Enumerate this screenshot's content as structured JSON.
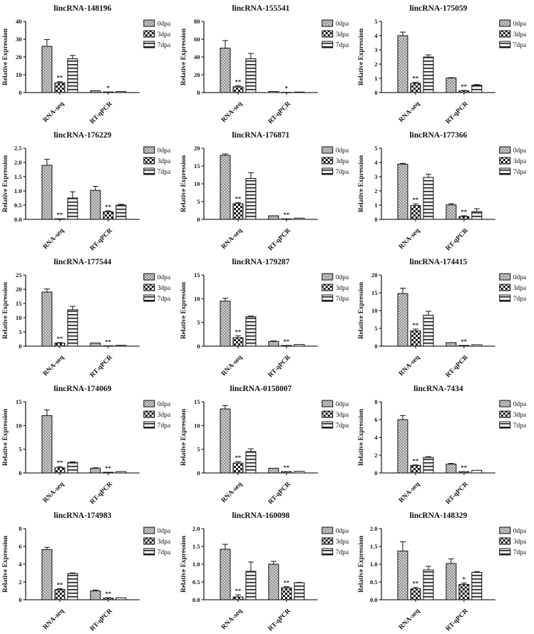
{
  "page": {
    "background": "#ffffff",
    "foreground": "#111111"
  },
  "legend": {
    "items": [
      "0dpa",
      "3dpa",
      "7dpa"
    ]
  },
  "axis": {
    "ylabel": "Relative Expression",
    "categories": [
      "RNA-seq",
      "RT-qPCR"
    ]
  },
  "chart_data": [
    {
      "type": "bar",
      "title": "lincRNA-148196",
      "title_font": "serif",
      "ylabel": "Relative Expression",
      "categories": [
        "RNA-seq",
        "RT-qPCR"
      ],
      "ylim": [
        0,
        40
      ],
      "ystep": 10,
      "ydecimals": 0,
      "series": [
        {
          "name": "0dpa",
          "values": [
            26,
            1.0
          ],
          "errors": [
            3.8,
            0
          ]
        },
        {
          "name": "3dpa",
          "values": [
            5.5,
            0.35
          ],
          "errors": [
            0.6,
            0
          ],
          "sig": [
            "**",
            "*"
          ]
        },
        {
          "name": "7dpa",
          "values": [
            19,
            0.55
          ],
          "errors": [
            1.9,
            0
          ]
        }
      ]
    },
    {
      "type": "bar",
      "title": "lincRNA-155541",
      "title_font": "sans",
      "ylabel": "Relative Expression",
      "categories": [
        "RNA-seq",
        "RT-qPCR"
      ],
      "ylim": [
        0,
        80
      ],
      "ystep": 20,
      "ydecimals": 0,
      "series": [
        {
          "name": "0dpa",
          "values": [
            50,
            1.2
          ],
          "errors": [
            8.5,
            0
          ]
        },
        {
          "name": "3dpa",
          "values": [
            6.5,
            0.3
          ],
          "errors": [
            1.2,
            0
          ],
          "sig": [
            "**",
            "*"
          ]
        },
        {
          "name": "7dpa",
          "values": [
            38,
            0.6
          ],
          "errors": [
            6,
            0
          ]
        }
      ]
    },
    {
      "type": "bar",
      "title": "lincRNA-175059",
      "title_font": "serif",
      "ylabel": "Relative Expression",
      "categories": [
        "RNA-seq",
        "RT-qPCR"
      ],
      "ylim": [
        0,
        5
      ],
      "ystep": 1,
      "ydecimals": 0,
      "series": [
        {
          "name": "0dpa",
          "values": [
            4.0,
            1.02
          ],
          "errors": [
            0.25,
            0.03
          ]
        },
        {
          "name": "3dpa",
          "values": [
            0.65,
            0.12
          ],
          "errors": [
            0.07,
            0.03
          ],
          "sig": [
            "**",
            "**"
          ]
        },
        {
          "name": "7dpa",
          "values": [
            2.5,
            0.52
          ],
          "errors": [
            0.15,
            0.04
          ]
        }
      ]
    },
    {
      "type": "bar",
      "title": "lincRNA-176229",
      "title_font": "serif",
      "ylabel": "Relative Expression",
      "categories": [
        "RNA-seq",
        "RT-qPCR"
      ],
      "ylim": [
        0,
        2.5
      ],
      "ystep": 0.5,
      "ydecimals": 1,
      "series": [
        {
          "name": "0dpa",
          "values": [
            1.9,
            1.02
          ],
          "errors": [
            0.21,
            0.14
          ]
        },
        {
          "name": "3dpa",
          "values": [
            0.02,
            0.27
          ],
          "errors": [
            0,
            0.03
          ],
          "sig": [
            "**",
            "**"
          ]
        },
        {
          "name": "7dpa",
          "values": [
            0.75,
            0.5
          ],
          "errors": [
            0.22,
            0.03
          ]
        }
      ]
    },
    {
      "type": "bar",
      "title": "lincRNA-176871",
      "title_font": "serif",
      "ylabel": "Relative Expression",
      "categories": [
        "RNA-seq",
        "RT-qPCR"
      ],
      "ylim": [
        0,
        20
      ],
      "ystep": 5,
      "ydecimals": 0,
      "series": [
        {
          "name": "0dpa",
          "values": [
            18,
            1.0
          ],
          "errors": [
            0.4,
            0
          ]
        },
        {
          "name": "3dpa",
          "values": [
            4.4,
            0.15
          ],
          "errors": [
            0.3,
            0
          ],
          "sig": [
            "**",
            "**"
          ]
        },
        {
          "name": "7dpa",
          "values": [
            11.5,
            0.35
          ],
          "errors": [
            1.6,
            0
          ]
        }
      ]
    },
    {
      "type": "bar",
      "title": "lincRNA-177366",
      "title_font": "serif",
      "ylabel": "Relative Expression",
      "categories": [
        "RNA-seq",
        "RT-qPCR"
      ],
      "ylim": [
        0,
        5
      ],
      "ystep": 1,
      "ydecimals": 0,
      "series": [
        {
          "name": "0dpa",
          "values": [
            3.88,
            1.02
          ],
          "errors": [
            0.06,
            0.08
          ]
        },
        {
          "name": "3dpa",
          "values": [
            0.97,
            0.2
          ],
          "errors": [
            0.12,
            0.05
          ],
          "sig": [
            "**",
            "**"
          ]
        },
        {
          "name": "7dpa",
          "values": [
            2.95,
            0.55
          ],
          "errors": [
            0.22,
            0.2
          ]
        }
      ]
    },
    {
      "type": "bar",
      "title": "lincRNA-177544",
      "title_font": "serif",
      "ylabel": "Relative Expression",
      "categories": [
        "RNA-seq",
        "RT-qPCR"
      ],
      "ylim": [
        0,
        25
      ],
      "ystep": 5,
      "ydecimals": 0,
      "series": [
        {
          "name": "0dpa",
          "values": [
            19,
            1.1
          ],
          "errors": [
            1.1,
            0
          ]
        },
        {
          "name": "3dpa",
          "values": [
            1.1,
            0.15
          ],
          "errors": [
            0.15,
            0
          ],
          "sig": [
            "**",
            "**"
          ]
        },
        {
          "name": "7dpa",
          "values": [
            12.8,
            0.3
          ],
          "errors": [
            1.2,
            0
          ]
        }
      ]
    },
    {
      "type": "bar",
      "title": "lincRNA-179287",
      "title_font": "sans",
      "ylabel": "Relative Expression",
      "categories": [
        "RNA-seq",
        "RT-qPCR"
      ],
      "ylim": [
        0,
        15
      ],
      "ystep": 5,
      "ydecimals": 0,
      "series": [
        {
          "name": "0dpa",
          "values": [
            9.5,
            1.0
          ],
          "errors": [
            0.6,
            0.1
          ]
        },
        {
          "name": "3dpa",
          "values": [
            1.8,
            0.15
          ],
          "errors": [
            0.4,
            0
          ],
          "sig": [
            "**",
            "**"
          ]
        },
        {
          "name": "7dpa",
          "values": [
            6.2,
            0.35
          ],
          "errors": [
            0.15,
            0
          ]
        }
      ]
    },
    {
      "type": "bar",
      "title": "lincRNA-174415",
      "title_font": "serif",
      "ylabel": "Relative Expression",
      "categories": [
        "RNA-seq",
        "RT-qPCR"
      ],
      "ylim": [
        0,
        20
      ],
      "ystep": 5,
      "ydecimals": 0,
      "series": [
        {
          "name": "0dpa",
          "values": [
            14.8,
            1.0
          ],
          "errors": [
            1.5,
            0
          ]
        },
        {
          "name": "3dpa",
          "values": [
            4.3,
            0.2
          ],
          "errors": [
            0.5,
            0
          ],
          "sig": [
            "**",
            "**"
          ]
        },
        {
          "name": "7dpa",
          "values": [
            8.7,
            0.4
          ],
          "errors": [
            1.1,
            0
          ]
        }
      ]
    },
    {
      "type": "bar",
      "title": "lincRNA-174069",
      "title_font": "serif",
      "ylabel": "Relative Expression",
      "categories": [
        "RNA-seq",
        "RT-qPCR"
      ],
      "ylim": [
        0,
        15
      ],
      "ystep": 5,
      "ydecimals": 0,
      "series": [
        {
          "name": "0dpa",
          "values": [
            12.1,
            1.0
          ],
          "errors": [
            1.2,
            0.1
          ]
        },
        {
          "name": "3dpa",
          "values": [
            1.1,
            0.15
          ],
          "errors": [
            0.25,
            0
          ],
          "sig": [
            "**",
            "**"
          ]
        },
        {
          "name": "7dpa",
          "values": [
            2.2,
            0.3
          ],
          "errors": [
            0.15,
            0
          ]
        }
      ]
    },
    {
      "type": "bar",
      "title": "lincRNA-0158007",
      "title_font": "serif",
      "ylabel": "Relative Expression",
      "categories": [
        "RNA-seq",
        "RT-qPCR"
      ],
      "ylim": [
        0,
        15
      ],
      "ystep": 5,
      "ydecimals": 0,
      "series": [
        {
          "name": "0dpa",
          "values": [
            13.5,
            1.0
          ],
          "errors": [
            0.7,
            0
          ]
        },
        {
          "name": "3dpa",
          "values": [
            2.1,
            0.3
          ],
          "errors": [
            0.3,
            0
          ],
          "sig": [
            "**",
            "**"
          ]
        },
        {
          "name": "7dpa",
          "values": [
            4.5,
            0.35
          ],
          "errors": [
            0.6,
            0
          ]
        }
      ]
    },
    {
      "type": "bar",
      "title": "lincRNA-7434",
      "title_font": "serif",
      "ylabel": "Relative Expression",
      "categories": [
        "RNA-seq",
        "RT-qPCR"
      ],
      "ylim": [
        0,
        8
      ],
      "ystep": 2,
      "ydecimals": 0,
      "series": [
        {
          "name": "0dpa",
          "values": [
            6.0,
            1.0
          ],
          "errors": [
            0.45,
            0.07
          ]
        },
        {
          "name": "3dpa",
          "values": [
            0.85,
            0.15
          ],
          "errors": [
            0.05,
            0
          ],
          "sig": [
            "**",
            "**"
          ]
        },
        {
          "name": "7dpa",
          "values": [
            1.75,
            0.3
          ],
          "errors": [
            0.08,
            0
          ]
        }
      ]
    },
    {
      "type": "bar",
      "title": "lincRNA-174983",
      "title_font": "serif",
      "ylabel": "Relative Expression",
      "categories": [
        "RNA-seq",
        "RT-qPCR"
      ],
      "ylim": [
        0,
        8
      ],
      "ystep": 2,
      "ydecimals": 0,
      "series": [
        {
          "name": "0dpa",
          "values": [
            5.65,
            1.0
          ],
          "errors": [
            0.25,
            0.1
          ]
        },
        {
          "name": "3dpa",
          "values": [
            1.15,
            0.18
          ],
          "errors": [
            0.1,
            0.05
          ],
          "sig": [
            "**",
            "**"
          ]
        },
        {
          "name": "7dpa",
          "values": [
            2.95,
            0.22
          ],
          "errors": [
            0.07,
            0
          ]
        }
      ]
    },
    {
      "type": "bar",
      "title": "lincRNA-160098",
      "title_font": "sans",
      "ylabel": "Relative Expression",
      "categories": [
        "RNA-seq",
        "RT-qPCR"
      ],
      "ylim": [
        0,
        2.0
      ],
      "ystep": 0.5,
      "ydecimals": 1,
      "series": [
        {
          "name": "0dpa",
          "values": [
            1.42,
            1.0
          ],
          "errors": [
            0.14,
            0.08
          ]
        },
        {
          "name": "3dpa",
          "values": [
            0.08,
            0.34
          ],
          "errors": [
            0.06,
            0.03
          ],
          "sig": [
            "**",
            "**"
          ]
        },
        {
          "name": "7dpa",
          "values": [
            0.8,
            0.48
          ],
          "errors": [
            0.26,
            0.01
          ]
        }
      ]
    },
    {
      "type": "bar",
      "title": "lincRNA-148329",
      "title_font": "serif",
      "ylabel": "Relative Expression",
      "categories": [
        "RNA-seq",
        "RT-qPCR"
      ],
      "ylim": [
        0,
        2.0
      ],
      "ystep": 0.5,
      "ydecimals": 1,
      "series": [
        {
          "name": "0dpa",
          "values": [
            1.37,
            1.02
          ],
          "errors": [
            0.26,
            0.13
          ]
        },
        {
          "name": "3dpa",
          "values": [
            0.31,
            0.43
          ],
          "errors": [
            0.04,
            0.04
          ],
          "sig": [
            "**",
            "*"
          ]
        },
        {
          "name": "7dpa",
          "values": [
            0.84,
            0.77
          ],
          "errors": [
            0.1,
            0.02
          ]
        }
      ]
    }
  ]
}
